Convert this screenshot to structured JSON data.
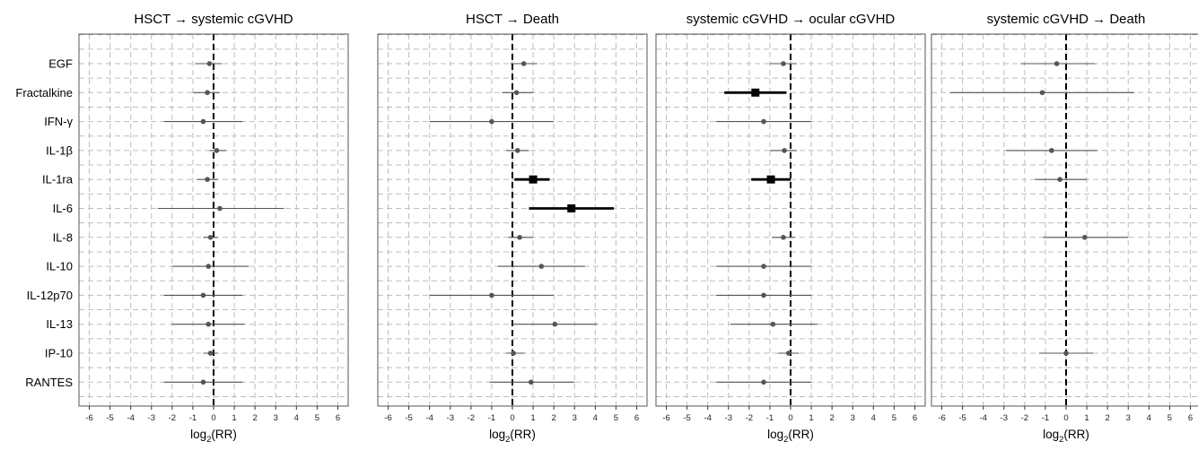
{
  "chart_data": {
    "type": "forest",
    "categories": [
      "EGF",
      "Fractalkine",
      "IFN-γ",
      "IL-1β",
      "IL-1ra",
      "IL-6",
      "IL-8",
      "IL-10",
      "IL-12p70",
      "IL-13",
      "IP-10",
      "RANTES"
    ],
    "xlim": [
      -6.5,
      6.5
    ],
    "xticks": [
      -6,
      -5,
      -4,
      -3,
      -2,
      -1,
      0,
      1,
      2,
      3,
      4,
      5,
      6
    ],
    "reference_line": 0,
    "grid": true,
    "panels": [
      {
        "title": "HSCT → systemic cGVHD",
        "xlabel_base": "log",
        "xlabel_sub": "2",
        "xlabel_rest": "(RR)",
        "estimates": [
          -0.2,
          -0.3,
          -0.5,
          0.15,
          -0.3,
          0.3,
          -0.15,
          -0.25,
          -0.5,
          -0.25,
          -0.15,
          -0.5
        ],
        "ci_low": [
          -0.9,
          -1.0,
          -2.4,
          -0.2,
          -0.8,
          -2.7,
          -0.5,
          -2.0,
          -2.4,
          -2.0,
          -0.5,
          -2.4
        ],
        "ci_high": [
          0.4,
          0.3,
          1.4,
          0.6,
          0.2,
          3.4,
          0.2,
          1.7,
          1.4,
          1.5,
          0.2,
          1.4
        ],
        "significant": [
          false,
          false,
          false,
          false,
          false,
          false,
          false,
          false,
          false,
          false,
          false,
          false
        ]
      },
      {
        "title": "HSCT → Death",
        "xlabel_base": "log",
        "xlabel_sub": "2",
        "xlabel_rest": "(RR)",
        "estimates": [
          0.55,
          0.2,
          -1.0,
          0.25,
          1.0,
          2.85,
          0.35,
          1.4,
          -1.0,
          2.05,
          0.05,
          0.9
        ],
        "ci_low": [
          -0.1,
          -0.5,
          -4.0,
          -0.3,
          0.1,
          0.8,
          -0.2,
          -0.7,
          -4.0,
          0.0,
          -0.3,
          -1.1
        ],
        "ci_high": [
          1.2,
          1.0,
          2.0,
          0.8,
          1.8,
          4.9,
          1.0,
          3.5,
          2.0,
          4.1,
          0.6,
          3.0
        ],
        "significant": [
          false,
          false,
          false,
          false,
          true,
          true,
          false,
          false,
          false,
          false,
          false,
          false
        ]
      },
      {
        "title": "systemic cGVHD → ocular cGVHD",
        "xlabel_base": "log",
        "xlabel_sub": "2",
        "xlabel_rest": "(RR)",
        "estimates": [
          -0.35,
          -1.7,
          -1.3,
          -0.3,
          -0.95,
          null,
          -0.35,
          -1.3,
          -1.3,
          -0.85,
          -0.1,
          -1.3
        ],
        "ci_low": [
          -1.0,
          -3.2,
          -3.6,
          -1.0,
          -1.9,
          null,
          -0.9,
          -3.6,
          -3.6,
          -2.9,
          -0.6,
          -3.6
        ],
        "ci_high": [
          0.3,
          -0.2,
          1.0,
          0.3,
          0.0,
          null,
          0.2,
          1.0,
          1.0,
          1.3,
          0.4,
          1.0
        ],
        "significant": [
          false,
          true,
          false,
          false,
          true,
          false,
          false,
          false,
          false,
          false,
          false,
          false
        ]
      },
      {
        "title": "systemic cGVHD → Death",
        "xlabel_base": "log",
        "xlabel_sub": "2",
        "xlabel_rest": "(RR)",
        "estimates": [
          -0.45,
          -1.15,
          null,
          -0.7,
          -0.3,
          null,
          0.9,
          null,
          null,
          null,
          0.0,
          null
        ],
        "ci_low": [
          -2.2,
          -5.6,
          null,
          -2.9,
          -1.5,
          null,
          -1.1,
          null,
          null,
          null,
          -1.3,
          null
        ],
        "ci_high": [
          1.4,
          3.3,
          null,
          1.5,
          1.0,
          null,
          3.0,
          null,
          null,
          null,
          1.3,
          null
        ],
        "significant": [
          false,
          false,
          false,
          false,
          false,
          false,
          false,
          false,
          false,
          false,
          false,
          false
        ]
      }
    ]
  }
}
